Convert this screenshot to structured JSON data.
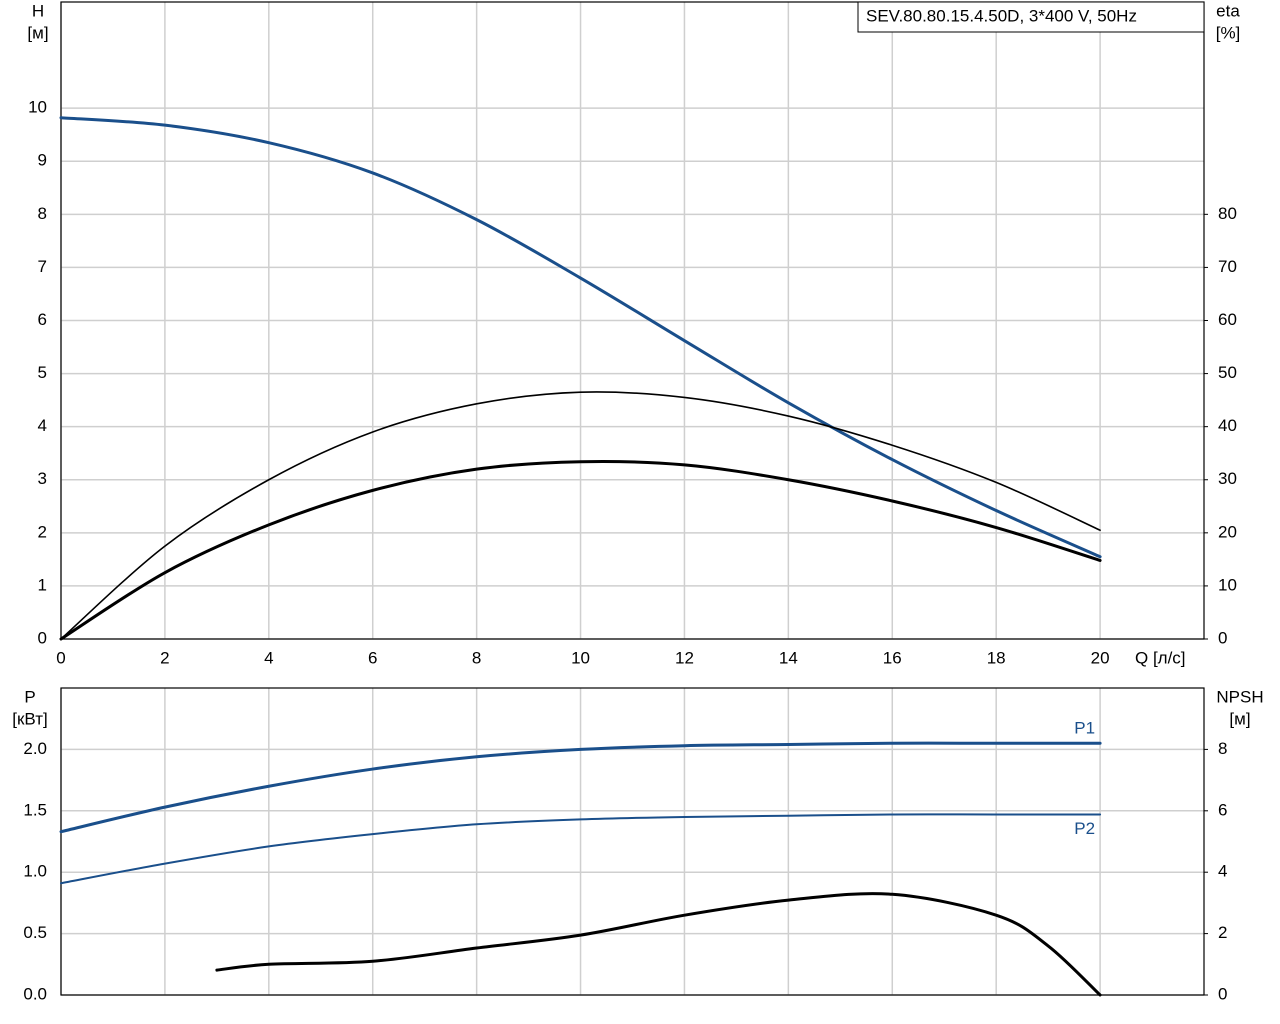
{
  "chart_data": [
    {
      "type": "line",
      "title": "SEV.80.80.15.4.50D, 3*400 V, 50Hz",
      "xlabel": "Q [л/с]",
      "ylabel": [
        "H",
        "[м]"
      ],
      "y2label": [
        "eta",
        "[%]"
      ],
      "x": [
        0,
        2,
        4,
        6,
        8,
        10,
        12,
        14,
        16,
        18,
        20
      ],
      "xlim": [
        0,
        22
      ],
      "xticks": [
        0,
        2,
        4,
        6,
        8,
        10,
        12,
        14,
        16,
        18,
        20
      ],
      "ylim": [
        0,
        12
      ],
      "yticks": [
        0,
        1,
        2,
        3,
        4,
        5,
        6,
        7,
        8,
        9,
        10
      ],
      "y2lim": [
        0,
        120
      ],
      "y2ticks": [
        0,
        10,
        20,
        30,
        40,
        50,
        60,
        70,
        80
      ],
      "grid": true,
      "show_xtick_labels": true,
      "series": [
        {
          "color": "#1a4f8b",
          "width": 3,
          "values": [
            9.82,
            9.68,
            9.35,
            8.78,
            7.9,
            6.8,
            5.62,
            4.45,
            3.38,
            2.42,
            1.55
          ]
        },
        {
          "color": "#000000",
          "width": 1.6,
          "axis": "y2",
          "values": [
            0,
            17.5,
            30,
            39,
            44.3,
            46.5,
            45.5,
            42,
            36.5,
            29.5,
            20.5
          ]
        },
        {
          "color": "#000000",
          "width": 3,
          "axis": "y2",
          "values": [
            0,
            12.5,
            21.5,
            28,
            32,
            33.4,
            32.8,
            30,
            26,
            21,
            14.8
          ]
        }
      ]
    },
    {
      "type": "line",
      "ylabel": [
        "P",
        "[кВт]"
      ],
      "y2label": [
        "NPSH",
        "[м]"
      ],
      "x": [
        0,
        2,
        4,
        6,
        8,
        10,
        12,
        14,
        16,
        18,
        20
      ],
      "xlim": [
        0,
        22
      ],
      "xticks": [
        0,
        2,
        4,
        6,
        8,
        10,
        12,
        14,
        16,
        18,
        20
      ],
      "ylim": [
        0,
        2.5
      ],
      "yticks": [
        {
          "value": 0,
          "label": "0.0"
        },
        0.5,
        {
          "value": 1,
          "label": "1.0"
        },
        1.5,
        {
          "value": 2,
          "label": "2.0"
        }
      ],
      "y2lim": [
        0,
        10
      ],
      "y2ticks": [
        0,
        2,
        4,
        6,
        8
      ],
      "grid": true,
      "show_xtick_labels": false,
      "series": [
        {
          "name": "P1",
          "color": "#1a4f8b",
          "width": 3,
          "values": [
            1.33,
            1.53,
            1.7,
            1.84,
            1.94,
            2.0,
            2.03,
            2.04,
            2.05,
            2.05,
            2.05
          ]
        },
        {
          "name": "P2",
          "color": "#1a4f8b",
          "width": 2,
          "values": [
            0.91,
            1.07,
            1.21,
            1.31,
            1.39,
            1.43,
            1.45,
            1.46,
            1.47,
            1.47,
            1.47
          ]
        },
        {
          "color": "#000000",
          "width": 3,
          "axis": "y2",
          "x": [
            3,
            4,
            6,
            8,
            10,
            12,
            14,
            16,
            18,
            19,
            20
          ],
          "values": [
            0.81,
            1.0,
            1.1,
            1.53,
            1.95,
            2.6,
            3.09,
            3.28,
            2.6,
            1.6,
            0
          ]
        }
      ]
    }
  ]
}
